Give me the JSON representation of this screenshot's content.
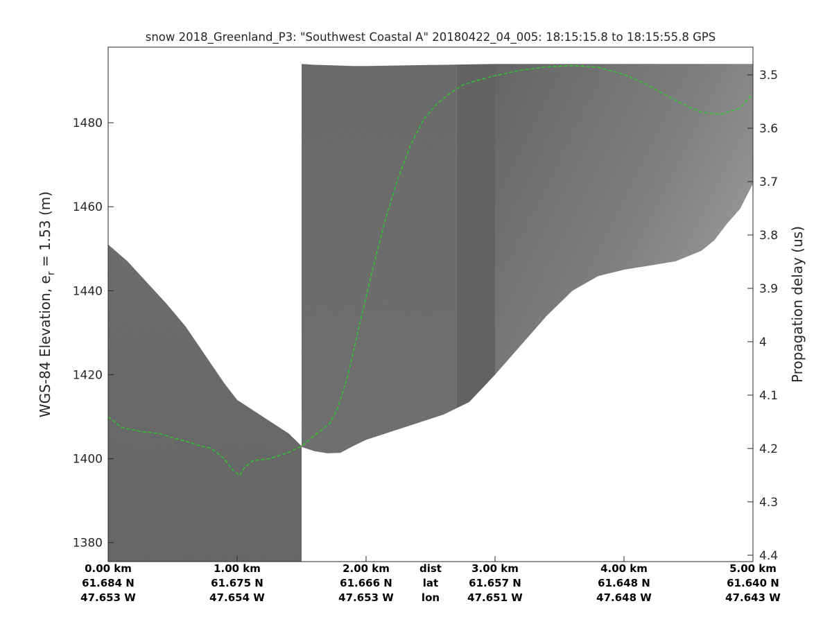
{
  "chart_data": {
    "type": "heatmap",
    "title": "snow 2018_Greenland_P3: \"Southwest Coastal A\"  20180422_04_005: 18:15:15.8 to 18:15:55.8 GPS",
    "ylabel_left_prefix": "WGS-84 Elevation, e",
    "ylabel_left_subscript": "r",
    "ylabel_left_suffix": " = 1.53 (m)",
    "ylabel_right": "Propagation delay (us)",
    "xlim_km": [
      0,
      5
    ],
    "ylim_left": [
      1375.5,
      1498
    ],
    "ylim_right": [
      3.448,
      4.412
    ],
    "yticks_left": [
      1380,
      1400,
      1420,
      1440,
      1460,
      1480
    ],
    "yticks_right": [
      "3.5",
      "3.6",
      "3.7",
      "3.8",
      "3.9",
      "4",
      "4.1",
      "4.2",
      "4.3",
      "4.4"
    ],
    "x_axis_rows": [
      {
        "label": "dist",
        "km": 0,
        "values": [
          "0.00 km",
          "1.00 km",
          "2.00 km",
          "3.00 km",
          "4.00 km",
          "5.00 km"
        ]
      },
      {
        "label": "lat",
        "values": [
          "61.684 N",
          "61.675 N",
          "61.666 N",
          "61.657 N",
          "61.648 N",
          "61.640 N"
        ]
      },
      {
        "label": "lon",
        "values": [
          "47.653 W",
          "47.654 W",
          "47.653 W",
          "47.651 W",
          "47.648 W",
          "47.643 W"
        ]
      }
    ],
    "x_tick_km": [
      0,
      1,
      2,
      3,
      4,
      5
    ],
    "row_label_km": 2.5,
    "surface_layer": {
      "name": "surface",
      "color": "#22dd22",
      "style": "dashed",
      "x_km": [
        0.0,
        0.1,
        0.25,
        0.4,
        0.5,
        0.62,
        0.72,
        0.8,
        0.9,
        0.96,
        1.02,
        1.06,
        1.12,
        1.25,
        1.4,
        1.5,
        1.62,
        1.72,
        1.78,
        1.86,
        1.95,
        2.05,
        2.15,
        2.25,
        2.35,
        2.45,
        2.55,
        2.65,
        2.75,
        2.85,
        3.0,
        3.2,
        3.4,
        3.6,
        3.8,
        4.0,
        4.15,
        4.3,
        4.45,
        4.6,
        4.75,
        4.9,
        5.0
      ],
      "elev_m": [
        1410,
        1407.5,
        1406.5,
        1406,
        1405,
        1404,
        1403,
        1402.5,
        1400,
        1397.5,
        1396,
        1398,
        1399.5,
        1400,
        1401.5,
        1403,
        1406,
        1408.5,
        1412,
        1420,
        1432,
        1445,
        1457,
        1467,
        1475,
        1481,
        1484.5,
        1487,
        1489,
        1490,
        1491.2,
        1492.5,
        1493.3,
        1493.6,
        1493.2,
        1491.5,
        1489.5,
        1487,
        1484.5,
        1482.5,
        1482,
        1483.5,
        1487
      ]
    },
    "data_bounds": {
      "x_km": [
        0.0,
        0.15,
        0.3,
        0.45,
        0.6,
        0.7,
        0.8,
        0.9,
        1.0,
        1.1,
        1.2,
        1.3,
        1.4,
        1.5,
        1.6,
        1.7,
        1.8,
        1.9,
        2.0,
        2.2,
        2.4,
        2.6,
        2.8,
        3.0,
        3.2,
        3.4,
        3.6,
        3.8,
        4.0,
        4.2,
        4.4,
        4.6,
        4.7,
        4.8,
        4.9,
        5.0
      ],
      "top_elev_m": [
        1451,
        1447,
        1442,
        1437,
        1431.5,
        1427,
        1422.5,
        1418,
        1414,
        1412,
        1410,
        1408,
        1406,
        1494,
        1493.8,
        1493.7,
        1493.6,
        1493.5,
        1493.5,
        1493.6,
        1493.7,
        1493.8,
        1493.9,
        1494,
        1494,
        1494,
        1494,
        1494,
        1494,
        1494,
        1494,
        1494,
        1494,
        1494,
        1494,
        1494
      ],
      "bottom_elev_m": [
        1375.5,
        1375.5,
        1375.5,
        1375.5,
        1375.5,
        1375.5,
        1375.5,
        1375.5,
        1375.5,
        1375.5,
        1375.5,
        1375.5,
        1375.5,
        1402.8,
        1401.8,
        1401.3,
        1401.4,
        1403,
        1404.5,
        1406.5,
        1408.5,
        1410.5,
        1413.5,
        1420,
        1427,
        1434,
        1440,
        1443.5,
        1445,
        1446,
        1447,
        1449.5,
        1452,
        1456,
        1459.5,
        1465.5
      ]
    },
    "segment_breaks_km": [
      1.5,
      2.7,
      3.0
    ]
  }
}
